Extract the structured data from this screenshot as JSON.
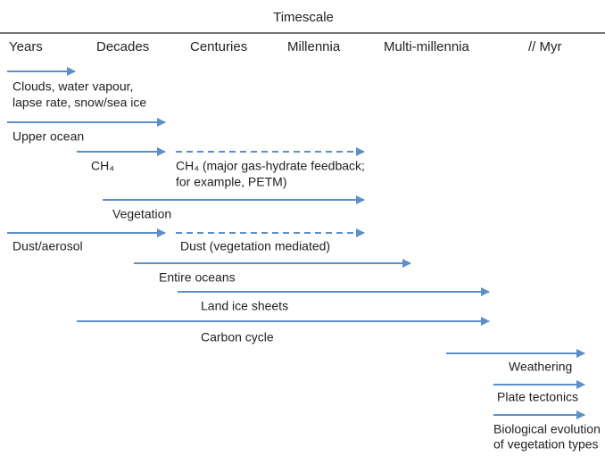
{
  "header": {
    "title": "Timescale",
    "columns": [
      "Years",
      "Decades",
      "Centuries",
      "Millennia",
      "Multi-millennia",
      "// Myr"
    ]
  },
  "labels": [
    {
      "lines": [
        "Clouds, water vapour,",
        "lapse rate, snow/sea ice"
      ]
    },
    {
      "lines": [
        "Upper ocean"
      ]
    },
    {
      "lines": [
        "CH₄"
      ]
    },
    {
      "lines": [
        "CH₄ (major gas-hydrate feedback;",
        "for example, PETM)"
      ]
    },
    {
      "lines": [
        "Vegetation"
      ]
    },
    {
      "lines": [
        "Dust/aerosol"
      ]
    },
    {
      "lines": [
        "Dust (vegetation mediated)"
      ]
    },
    {
      "lines": [
        "Entire oceans"
      ]
    },
    {
      "lines": [
        "Land ice sheets"
      ]
    },
    {
      "lines": [
        "Carbon cycle"
      ]
    },
    {
      "lines": [
        "Weathering"
      ]
    },
    {
      "lines": [
        "Plate tectonics"
      ]
    },
    {
      "lines": [
        "Biological evolution",
        "of vegetation types"
      ]
    }
  ]
}
